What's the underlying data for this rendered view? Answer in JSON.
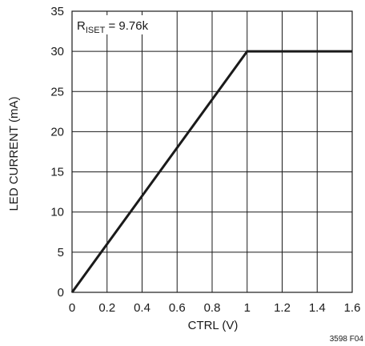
{
  "chart_data": {
    "type": "line",
    "title": "",
    "xlabel": "CTRL (V)",
    "ylabel": "LED CURRENT (mA)",
    "xlim": [
      0,
      1.6
    ],
    "ylim": [
      0,
      35
    ],
    "xticks": [
      "0",
      "0.2",
      "0.4",
      "0.6",
      "0.8",
      "1",
      "1.2",
      "1.4",
      "1.6"
    ],
    "yticks": [
      "0",
      "5",
      "10",
      "15",
      "20",
      "25",
      "30",
      "35"
    ],
    "grid": true,
    "annotation": {
      "main": "R",
      "sub": "ISET",
      "rest": " = 9.76k"
    },
    "series": [
      {
        "x": [
          0,
          1.0,
          1.6
        ],
        "y": [
          0,
          30,
          30
        ]
      }
    ],
    "figure_id": "3598 F04",
    "colors": {
      "line": "#1a1a1a",
      "grid": "#1a1a1a",
      "background": "#ffffff"
    }
  }
}
